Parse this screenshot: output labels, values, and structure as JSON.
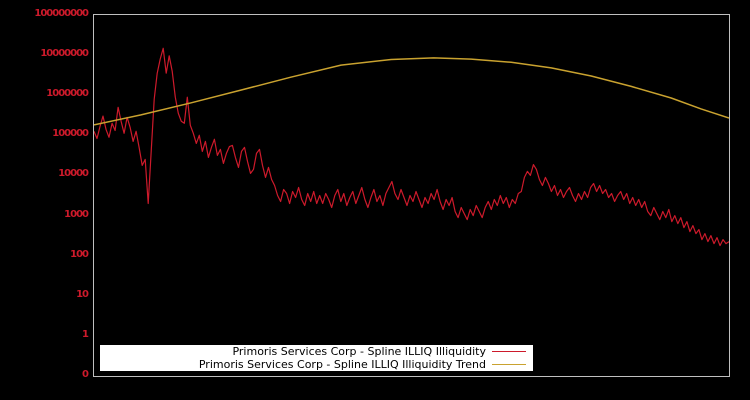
{
  "canvas": {
    "background": "#000000",
    "plot_border_color": "#bfbfbf"
  },
  "chart_data": {
    "type": "line",
    "yscale": "log",
    "ylim": [
      0.1,
      100000000
    ],
    "grid": false,
    "legend_position": "bottom-center-inside",
    "legend_background": "#ffffff",
    "yaxis": {
      "tick_color": "#cd1a2b",
      "ticks": [
        {
          "label": "100000000",
          "log10": 8
        },
        {
          "label": "10000000",
          "log10": 7
        },
        {
          "label": "1000000",
          "log10": 6
        },
        {
          "label": "100000",
          "log10": 5
        },
        {
          "label": "10000",
          "log10": 4
        },
        {
          "label": "1000",
          "log10": 3
        },
        {
          "label": "100",
          "log10": 2
        },
        {
          "label": "10",
          "log10": 1
        },
        {
          "label": "1",
          "log10": 0
        },
        {
          "label": "0",
          "log10": -1
        }
      ]
    },
    "xaxis": {
      "tick_labels": []
    },
    "series": [
      {
        "name": "Primoris Services Corp - Spline ILLIQ Illiquidity",
        "color": "#cd1a2b",
        "x_spacing": "uniform",
        "values_log10": [
          5.1,
          4.92,
          5.22,
          5.48,
          5.15,
          4.95,
          5.3,
          5.12,
          5.7,
          5.35,
          5.05,
          5.45,
          5.2,
          4.85,
          5.1,
          4.7,
          4.25,
          4.4,
          3.3,
          4.6,
          5.9,
          6.55,
          6.9,
          7.17,
          6.55,
          6.98,
          6.6,
          5.95,
          5.55,
          5.35,
          5.3,
          5.95,
          5.25,
          5.05,
          4.8,
          5.0,
          4.6,
          4.85,
          4.45,
          4.7,
          4.9,
          4.5,
          4.65,
          4.3,
          4.55,
          4.72,
          4.75,
          4.45,
          4.2,
          4.6,
          4.7,
          4.35,
          4.05,
          4.15,
          4.55,
          4.65,
          4.25,
          3.95,
          4.2,
          3.9,
          3.75,
          3.5,
          3.35,
          3.65,
          3.55,
          3.3,
          3.6,
          3.45,
          3.7,
          3.4,
          3.25,
          3.55,
          3.35,
          3.6,
          3.3,
          3.5,
          3.3,
          3.55,
          3.4,
          3.2,
          3.5,
          3.65,
          3.35,
          3.55,
          3.25,
          3.45,
          3.6,
          3.3,
          3.5,
          3.7,
          3.4,
          3.2,
          3.45,
          3.65,
          3.35,
          3.5,
          3.25,
          3.55,
          3.7,
          3.85,
          3.55,
          3.4,
          3.65,
          3.45,
          3.25,
          3.5,
          3.35,
          3.6,
          3.4,
          3.2,
          3.45,
          3.3,
          3.55,
          3.4,
          3.65,
          3.35,
          3.15,
          3.4,
          3.25,
          3.45,
          3.1,
          2.95,
          3.2,
          3.05,
          2.9,
          3.15,
          3.0,
          3.25,
          3.1,
          2.95,
          3.2,
          3.35,
          3.15,
          3.4,
          3.25,
          3.5,
          3.3,
          3.45,
          3.2,
          3.4,
          3.3,
          3.55,
          3.6,
          3.95,
          4.1,
          4.0,
          4.27,
          4.15,
          3.9,
          3.75,
          3.95,
          3.8,
          3.6,
          3.75,
          3.5,
          3.65,
          3.45,
          3.6,
          3.7,
          3.5,
          3.35,
          3.55,
          3.4,
          3.6,
          3.45,
          3.7,
          3.8,
          3.6,
          3.75,
          3.55,
          3.65,
          3.45,
          3.55,
          3.35,
          3.5,
          3.6,
          3.4,
          3.55,
          3.3,
          3.45,
          3.25,
          3.4,
          3.2,
          3.35,
          3.1,
          3.0,
          3.2,
          3.05,
          2.9,
          3.1,
          2.95,
          3.15,
          2.85,
          3.0,
          2.8,
          2.95,
          2.7,
          2.85,
          2.6,
          2.75,
          2.55,
          2.65,
          2.4,
          2.55,
          2.35,
          2.5,
          2.3,
          2.45,
          2.25,
          2.4,
          2.3,
          2.35
        ]
      },
      {
        "name": "Primoris Services Corp - Spline ILLIQ Illiquidity Trend",
        "color": "#c9a22f",
        "points_log10": [
          [
            0.0,
            5.26
          ],
          [
            0.074,
            5.51
          ],
          [
            0.153,
            5.81
          ],
          [
            0.232,
            6.13
          ],
          [
            0.31,
            6.45
          ],
          [
            0.389,
            6.75
          ],
          [
            0.468,
            6.89
          ],
          [
            0.535,
            6.93
          ],
          [
            0.594,
            6.9
          ],
          [
            0.657,
            6.82
          ],
          [
            0.72,
            6.68
          ],
          [
            0.783,
            6.48
          ],
          [
            0.846,
            6.22
          ],
          [
            0.909,
            5.93
          ],
          [
            0.956,
            5.66
          ],
          [
            1.0,
            5.43
          ]
        ]
      }
    ]
  }
}
